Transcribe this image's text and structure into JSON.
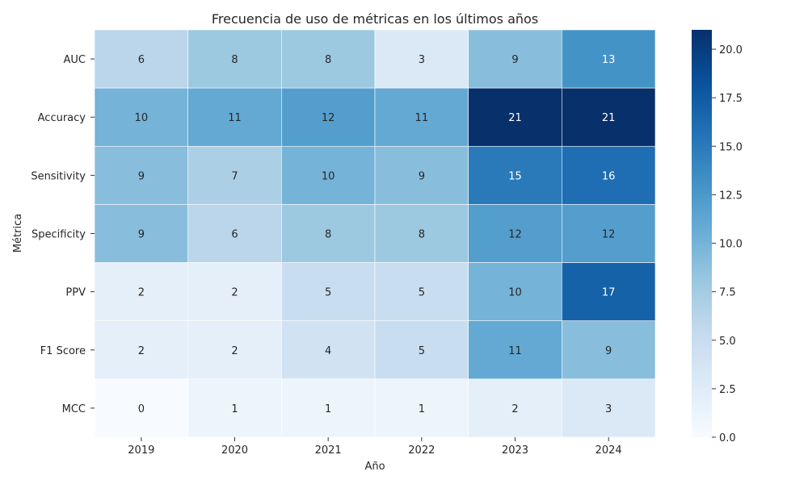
{
  "chart_data": {
    "type": "heatmap",
    "title": "Frecuencia de uso de métricas en los últimos años",
    "xlabel": "Año",
    "ylabel": "Métrica",
    "x_categories": [
      "2019",
      "2020",
      "2021",
      "2022",
      "2023",
      "2024"
    ],
    "y_categories": [
      "AUC",
      "Accuracy",
      "Sensitivity",
      "Specificity",
      "PPV",
      "F1 Score",
      "MCC"
    ],
    "values": [
      [
        6,
        8,
        8,
        3,
        9,
        13
      ],
      [
        10,
        11,
        12,
        11,
        21,
        21
      ],
      [
        9,
        7,
        10,
        9,
        15,
        16
      ],
      [
        9,
        6,
        8,
        8,
        12,
        12
      ],
      [
        2,
        2,
        5,
        5,
        10,
        17
      ],
      [
        2,
        2,
        4,
        5,
        11,
        9
      ],
      [
        0,
        1,
        1,
        1,
        2,
        3
      ]
    ],
    "colorscale": "Blues",
    "colorbar": {
      "range": [
        0,
        21
      ],
      "ticks": [
        0,
        2.5,
        5,
        7.5,
        10,
        12.5,
        15,
        17.5,
        20
      ],
      "tick_labels": [
        "0.0",
        "2.5",
        "5.0",
        "7.5",
        "10.0",
        "12.5",
        "15.0",
        "17.5",
        "20.0"
      ]
    },
    "annotations": true,
    "grid": false
  }
}
